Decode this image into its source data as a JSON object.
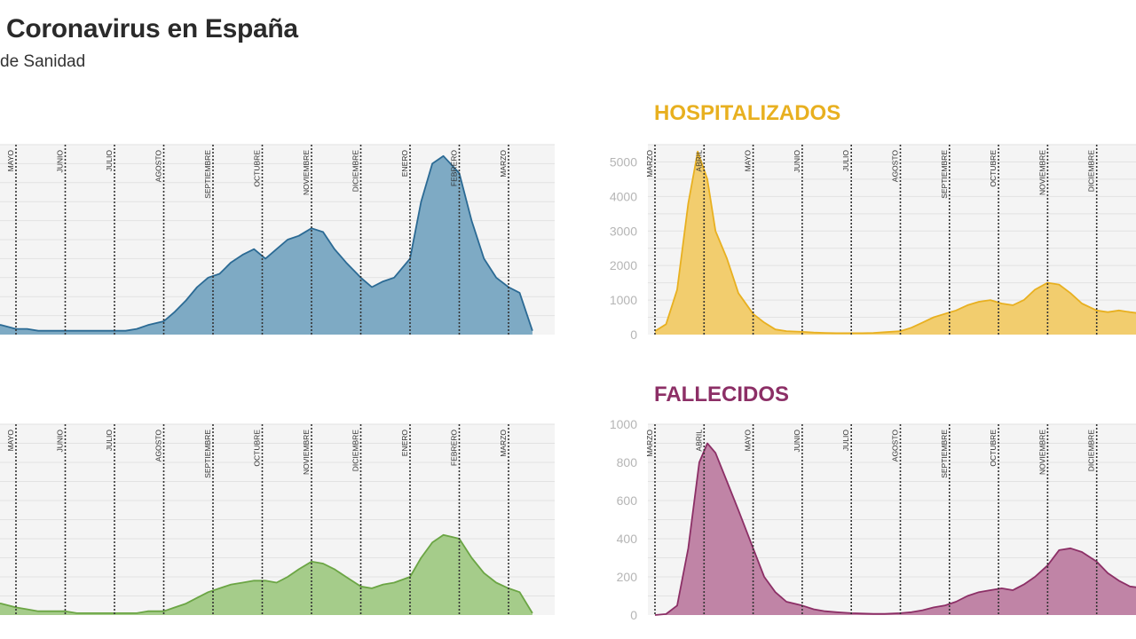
{
  "header": {
    "title": "Coronavirus en España",
    "subtitle": "de Sanidad"
  },
  "chart_data": [
    {
      "type": "area",
      "panel": "top-left",
      "heading": "",
      "color": "#2b6a94",
      "fill": "#7eaac4",
      "months": [
        "MAYO",
        "JUNIO",
        "JULIO",
        "AGOSTO",
        "SEPTIEMBRE",
        "OCTUBRE",
        "NOVIEMBRE",
        "DICIEMBRE",
        "ENERO",
        "FEBRERO",
        "MARZO"
      ],
      "month_dates": [
        "2020-05",
        "2020-06",
        "2020-07",
        "2020-08",
        "2020-09",
        "2020-10",
        "2020-11",
        "2020-12",
        "2021-01",
        "2021-02",
        "2021-03"
      ],
      "ylim": [
        0,
        100
      ],
      "ticks": [],
      "grid": true,
      "points": [
        [
          "2020-04-01",
          10
        ],
        [
          "2020-04-08",
          8
        ],
        [
          "2020-04-15",
          6
        ],
        [
          "2020-04-22",
          5
        ],
        [
          "2020-05-01",
          3
        ],
        [
          "2020-05-08",
          3
        ],
        [
          "2020-05-15",
          2
        ],
        [
          "2020-05-22",
          2
        ],
        [
          "2020-06-01",
          2
        ],
        [
          "2020-06-08",
          2
        ],
        [
          "2020-06-15",
          2
        ],
        [
          "2020-06-22",
          2
        ],
        [
          "2020-07-01",
          2
        ],
        [
          "2020-07-08",
          2
        ],
        [
          "2020-07-15",
          3
        ],
        [
          "2020-07-22",
          5
        ],
        [
          "2020-08-01",
          7
        ],
        [
          "2020-08-08",
          12
        ],
        [
          "2020-08-15",
          18
        ],
        [
          "2020-08-22",
          25
        ],
        [
          "2020-08-29",
          30
        ],
        [
          "2020-09-05",
          32
        ],
        [
          "2020-09-12",
          38
        ],
        [
          "2020-09-19",
          42
        ],
        [
          "2020-09-26",
          45
        ],
        [
          "2020-10-03",
          40
        ],
        [
          "2020-10-10",
          45
        ],
        [
          "2020-10-17",
          50
        ],
        [
          "2020-10-24",
          52
        ],
        [
          "2020-11-01",
          56
        ],
        [
          "2020-11-08",
          54
        ],
        [
          "2020-11-15",
          45
        ],
        [
          "2020-11-22",
          38
        ],
        [
          "2020-12-01",
          30
        ],
        [
          "2020-12-08",
          25
        ],
        [
          "2020-12-15",
          28
        ],
        [
          "2020-12-22",
          30
        ],
        [
          "2021-01-01",
          40
        ],
        [
          "2021-01-08",
          70
        ],
        [
          "2021-01-15",
          90
        ],
        [
          "2021-01-22",
          94
        ],
        [
          "2021-02-01",
          85
        ],
        [
          "2021-02-08",
          60
        ],
        [
          "2021-02-15",
          40
        ],
        [
          "2021-02-22",
          30
        ],
        [
          "2021-03-01",
          25
        ],
        [
          "2021-03-08",
          22
        ],
        [
          "2021-03-16",
          2
        ]
      ]
    },
    {
      "type": "area",
      "panel": "top-right",
      "heading": "HOSPITALIZADOS",
      "color": "#e8b020",
      "fill": "#f2cd6e",
      "months": [
        "MARZO",
        "ABRIL",
        "MAYO",
        "JUNIO",
        "JULIO",
        "AGOSTO",
        "SEPTIEMBRE",
        "OCTUBRE",
        "NOVIEMBRE",
        "DICIEMBRE"
      ],
      "month_dates": [
        "2020-03",
        "2020-04",
        "2020-05",
        "2020-06",
        "2020-07",
        "2020-08",
        "2020-09",
        "2020-10",
        "2020-11",
        "2020-12"
      ],
      "ylim": [
        0,
        5500
      ],
      "ticks": [
        0,
        1000,
        2000,
        3000,
        4000,
        5000
      ],
      "grid": true,
      "points": [
        [
          "2020-03-01",
          100
        ],
        [
          "2020-03-08",
          300
        ],
        [
          "2020-03-15",
          1300
        ],
        [
          "2020-03-22",
          3800
        ],
        [
          "2020-03-28",
          5300
        ],
        [
          "2020-04-03",
          4500
        ],
        [
          "2020-04-08",
          3000
        ],
        [
          "2020-04-15",
          2200
        ],
        [
          "2020-04-22",
          1200
        ],
        [
          "2020-05-01",
          600
        ],
        [
          "2020-05-08",
          350
        ],
        [
          "2020-05-15",
          150
        ],
        [
          "2020-05-22",
          100
        ],
        [
          "2020-06-01",
          80
        ],
        [
          "2020-06-08",
          60
        ],
        [
          "2020-06-15",
          50
        ],
        [
          "2020-06-22",
          40
        ],
        [
          "2020-07-01",
          40
        ],
        [
          "2020-07-08",
          40
        ],
        [
          "2020-07-15",
          50
        ],
        [
          "2020-07-22",
          70
        ],
        [
          "2020-08-01",
          100
        ],
        [
          "2020-08-08",
          200
        ],
        [
          "2020-08-15",
          350
        ],
        [
          "2020-08-22",
          500
        ],
        [
          "2020-08-29",
          600
        ],
        [
          "2020-09-05",
          700
        ],
        [
          "2020-09-12",
          850
        ],
        [
          "2020-09-19",
          950
        ],
        [
          "2020-09-26",
          1000
        ],
        [
          "2020-10-03",
          900
        ],
        [
          "2020-10-10",
          850
        ],
        [
          "2020-10-17",
          1000
        ],
        [
          "2020-10-24",
          1300
        ],
        [
          "2020-11-01",
          1500
        ],
        [
          "2020-11-08",
          1450
        ],
        [
          "2020-11-15",
          1200
        ],
        [
          "2020-11-22",
          900
        ],
        [
          "2020-12-01",
          700
        ],
        [
          "2020-12-08",
          650
        ],
        [
          "2020-12-15",
          700
        ],
        [
          "2020-12-22",
          650
        ],
        [
          "2020-12-31",
          600
        ]
      ]
    },
    {
      "type": "area",
      "panel": "bottom-left",
      "heading": "",
      "color": "#6ba544",
      "fill": "#a5cc8a",
      "months": [
        "MAYO",
        "JUNIO",
        "JULIO",
        "AGOSTO",
        "SEPTIEMBRE",
        "OCTUBRE",
        "NOVIEMBRE",
        "DICIEMBRE",
        "ENERO",
        "FEBRERO",
        "MARZO"
      ],
      "month_dates": [
        "2020-05",
        "2020-06",
        "2020-07",
        "2020-08",
        "2020-09",
        "2020-10",
        "2020-11",
        "2020-12",
        "2021-01",
        "2021-02",
        "2021-03"
      ],
      "ylim": [
        0,
        100
      ],
      "ticks": [],
      "grid": true,
      "points": [
        [
          "2020-04-01",
          12
        ],
        [
          "2020-04-08",
          9
        ],
        [
          "2020-04-15",
          7
        ],
        [
          "2020-04-22",
          6
        ],
        [
          "2020-05-01",
          4
        ],
        [
          "2020-05-08",
          3
        ],
        [
          "2020-05-15",
          2
        ],
        [
          "2020-05-22",
          2
        ],
        [
          "2020-06-01",
          2
        ],
        [
          "2020-06-08",
          1
        ],
        [
          "2020-06-15",
          1
        ],
        [
          "2020-06-22",
          1
        ],
        [
          "2020-07-01",
          1
        ],
        [
          "2020-07-08",
          1
        ],
        [
          "2020-07-15",
          1
        ],
        [
          "2020-07-22",
          2
        ],
        [
          "2020-08-01",
          2
        ],
        [
          "2020-08-08",
          4
        ],
        [
          "2020-08-15",
          6
        ],
        [
          "2020-08-22",
          9
        ],
        [
          "2020-08-29",
          12
        ],
        [
          "2020-09-05",
          14
        ],
        [
          "2020-09-12",
          16
        ],
        [
          "2020-09-19",
          17
        ],
        [
          "2020-09-26",
          18
        ],
        [
          "2020-10-03",
          18
        ],
        [
          "2020-10-10",
          17
        ],
        [
          "2020-10-17",
          20
        ],
        [
          "2020-10-24",
          24
        ],
        [
          "2020-11-01",
          28
        ],
        [
          "2020-11-08",
          27
        ],
        [
          "2020-11-15",
          24
        ],
        [
          "2020-11-22",
          20
        ],
        [
          "2020-12-01",
          15
        ],
        [
          "2020-12-08",
          14
        ],
        [
          "2020-12-15",
          16
        ],
        [
          "2020-12-22",
          17
        ],
        [
          "2021-01-01",
          20
        ],
        [
          "2021-01-08",
          30
        ],
        [
          "2021-01-15",
          38
        ],
        [
          "2021-01-22",
          42
        ],
        [
          "2021-02-01",
          40
        ],
        [
          "2021-02-08",
          30
        ],
        [
          "2021-02-15",
          22
        ],
        [
          "2021-02-22",
          17
        ],
        [
          "2021-03-01",
          14
        ],
        [
          "2021-03-08",
          12
        ],
        [
          "2021-03-16",
          1
        ]
      ]
    },
    {
      "type": "area",
      "panel": "bottom-right",
      "heading": "FALLECIDOS",
      "color": "#8c2f66",
      "fill": "#c084a6",
      "months": [
        "MARZO",
        "ABRIL",
        "MAYO",
        "JUNIO",
        "JULIO",
        "AGOSTO",
        "SEPTIEMBRE",
        "OCTUBRE",
        "NOVIEMBRE",
        "DICIEMBRE"
      ],
      "month_dates": [
        "2020-03",
        "2020-04",
        "2020-05",
        "2020-06",
        "2020-07",
        "2020-08",
        "2020-09",
        "2020-10",
        "2020-11",
        "2020-12"
      ],
      "ylim": [
        0,
        1000
      ],
      "ticks": [
        0,
        200,
        400,
        600,
        800,
        1000
      ],
      "grid": true,
      "points": [
        [
          "2020-03-01",
          0
        ],
        [
          "2020-03-08",
          5
        ],
        [
          "2020-03-15",
          50
        ],
        [
          "2020-03-22",
          350
        ],
        [
          "2020-03-29",
          800
        ],
        [
          "2020-04-03",
          900
        ],
        [
          "2020-04-08",
          850
        ],
        [
          "2020-04-15",
          700
        ],
        [
          "2020-04-22",
          550
        ],
        [
          "2020-05-01",
          350
        ],
        [
          "2020-05-08",
          200
        ],
        [
          "2020-05-15",
          120
        ],
        [
          "2020-05-22",
          70
        ],
        [
          "2020-06-01",
          50
        ],
        [
          "2020-06-08",
          30
        ],
        [
          "2020-06-15",
          20
        ],
        [
          "2020-06-22",
          15
        ],
        [
          "2020-07-01",
          10
        ],
        [
          "2020-07-08",
          8
        ],
        [
          "2020-07-15",
          6
        ],
        [
          "2020-07-22",
          6
        ],
        [
          "2020-08-01",
          10
        ],
        [
          "2020-08-08",
          15
        ],
        [
          "2020-08-15",
          25
        ],
        [
          "2020-08-22",
          40
        ],
        [
          "2020-08-29",
          50
        ],
        [
          "2020-09-05",
          70
        ],
        [
          "2020-09-12",
          100
        ],
        [
          "2020-09-19",
          120
        ],
        [
          "2020-09-26",
          130
        ],
        [
          "2020-10-03",
          140
        ],
        [
          "2020-10-10",
          130
        ],
        [
          "2020-10-17",
          160
        ],
        [
          "2020-10-24",
          200
        ],
        [
          "2020-11-01",
          260
        ],
        [
          "2020-11-08",
          340
        ],
        [
          "2020-11-15",
          350
        ],
        [
          "2020-11-22",
          330
        ],
        [
          "2020-12-01",
          280
        ],
        [
          "2020-12-08",
          220
        ],
        [
          "2020-12-15",
          180
        ],
        [
          "2020-12-22",
          150
        ],
        [
          "2020-12-31",
          140
        ]
      ]
    }
  ]
}
